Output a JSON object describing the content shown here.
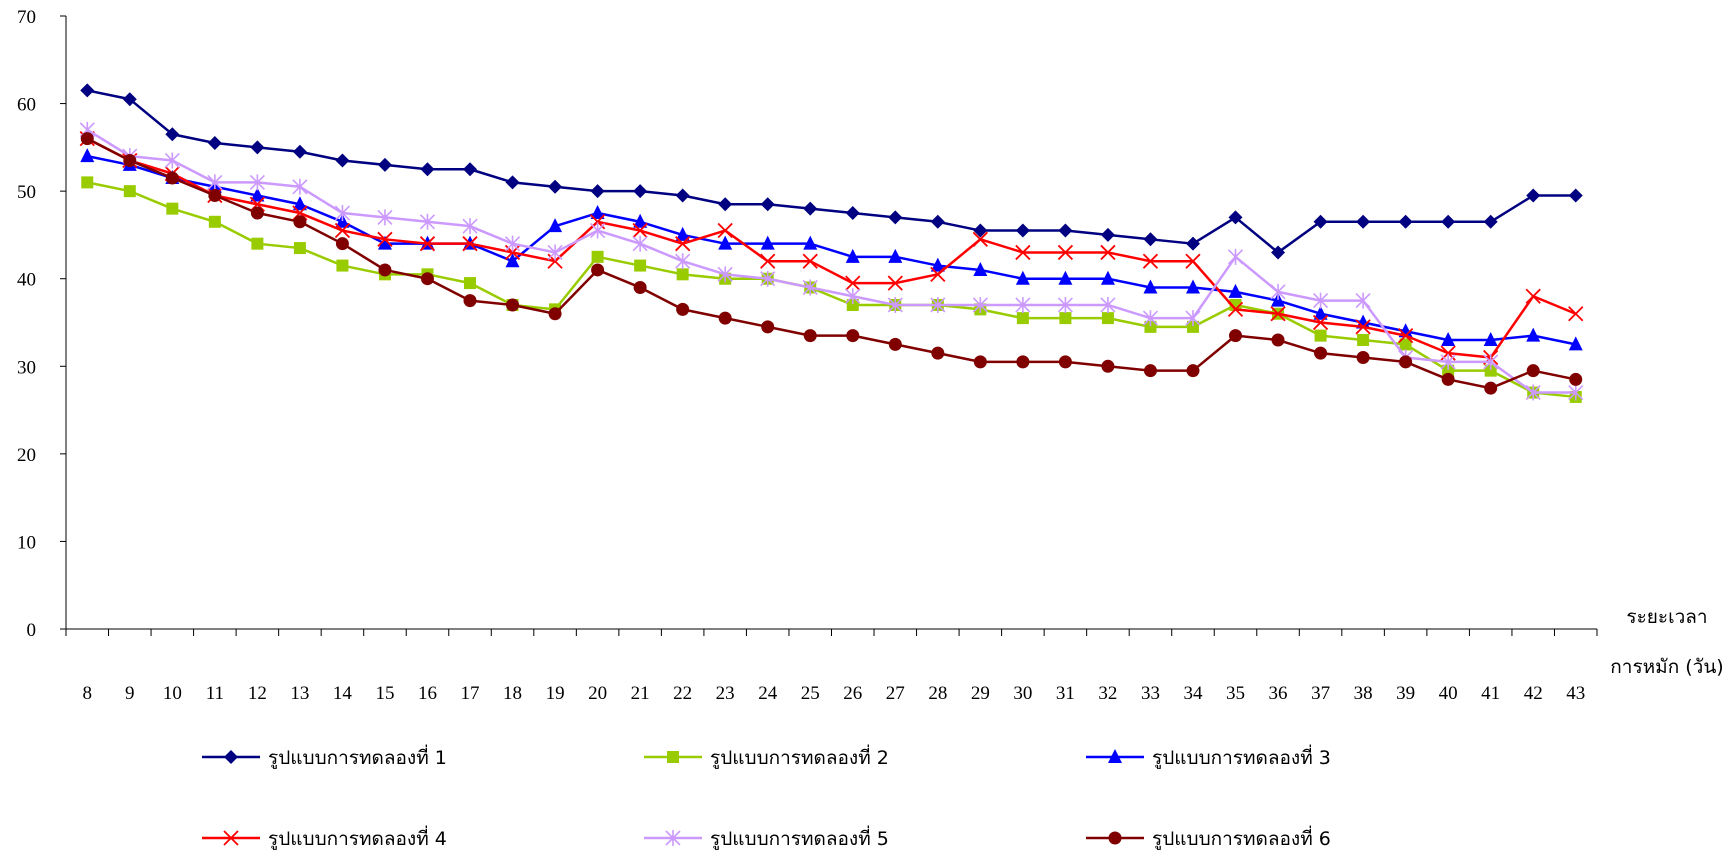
{
  "chart_data": {
    "type": "line",
    "title": "",
    "xlabel": [
      "ระยะเวลา",
      "การหมัก (วัน)"
    ],
    "ylabel": "",
    "ylim": [
      0,
      70
    ],
    "yticks": [
      0,
      10,
      20,
      30,
      40,
      50,
      60,
      70
    ],
    "grid": false,
    "legend_position": "bottom",
    "x": [
      8,
      9,
      10,
      11,
      12,
      13,
      14,
      15,
      16,
      17,
      18,
      19,
      20,
      21,
      22,
      23,
      24,
      25,
      26,
      27,
      28,
      29,
      30,
      31,
      32,
      33,
      34,
      35,
      36,
      37,
      38,
      39,
      40,
      41,
      42,
      43
    ],
    "series": [
      {
        "name": "รูปแบบการทดลองที่ 1",
        "color": "#000080",
        "marker": "diamond",
        "values": [
          61.5,
          60.5,
          56.5,
          55.5,
          55,
          54.5,
          53.5,
          53,
          52.5,
          52.5,
          51,
          50.5,
          50,
          50,
          49.5,
          48.5,
          48.5,
          48,
          47.5,
          47,
          46.5,
          45.5,
          45.5,
          45.5,
          45,
          44.5,
          44,
          47,
          43,
          46.5,
          46.5,
          46.5,
          46.5,
          46.5,
          49.5,
          49.5
        ]
      },
      {
        "name": "รูปแบบการทดลองที่ 2",
        "color": "#99CC00",
        "marker": "square",
        "values": [
          51,
          50,
          48,
          46.5,
          44,
          43.5,
          41.5,
          40.5,
          40.5,
          39.5,
          37,
          36.5,
          42.5,
          41.5,
          40.5,
          40,
          40,
          39,
          37,
          37,
          37,
          36.5,
          35.5,
          35.5,
          35.5,
          34.5,
          34.5,
          37,
          36,
          33.5,
          33,
          32.5,
          29.5,
          29.5,
          27,
          26.5
        ]
      },
      {
        "name": "รูปแบบการทดลองที่ 3",
        "color": "#0000FF",
        "marker": "triangle",
        "values": [
          54,
          53,
          51.5,
          50.5,
          49.5,
          48.5,
          46.5,
          44,
          44,
          44,
          42,
          46,
          47.5,
          46.5,
          45,
          44,
          44,
          44,
          42.5,
          42.5,
          41.5,
          41,
          40,
          40,
          40,
          39,
          39,
          38.5,
          37.5,
          36,
          35,
          34,
          33,
          33,
          33.5,
          32.5
        ]
      },
      {
        "name": "รูปแบบการทดลองที่ 4",
        "color": "#FF0000",
        "marker": "x",
        "values": [
          56,
          53.5,
          52,
          49.5,
          48.5,
          47.5,
          45.5,
          44.5,
          44,
          44,
          43,
          42,
          46.5,
          45.5,
          44,
          45.5,
          42,
          42,
          39.5,
          39.5,
          40.5,
          44.5,
          43,
          43,
          43,
          42,
          42,
          36.5,
          36,
          35,
          34.5,
          33.5,
          31.5,
          31,
          38,
          36
        ]
      },
      {
        "name": "รูปแบบการทดลองที่ 5",
        "color": "#CC99FF",
        "marker": "asterisk",
        "values": [
          57,
          54,
          53.5,
          51,
          51,
          50.5,
          47.5,
          47,
          46.5,
          46,
          44,
          43,
          45.5,
          44,
          42,
          40.5,
          40,
          39,
          38,
          37,
          37,
          37,
          37,
          37,
          37,
          35.5,
          35.5,
          42.5,
          38.5,
          37.5,
          37.5,
          31,
          30.5,
          30.5,
          27,
          27
        ]
      },
      {
        "name": "รูปแบบการทดลองที่ 6",
        "color": "#800000",
        "marker": "circle",
        "values": [
          56,
          53.5,
          51.5,
          49.5,
          47.5,
          46.5,
          44,
          41,
          40,
          37.5,
          37,
          36,
          41,
          39,
          36.5,
          35.5,
          34.5,
          33.5,
          33.5,
          32.5,
          31.5,
          30.5,
          30.5,
          30.5,
          30,
          29.5,
          29.5,
          33.5,
          33,
          31.5,
          31,
          30.5,
          28.5,
          27.5,
          29.5,
          28.5
        ]
      }
    ]
  }
}
